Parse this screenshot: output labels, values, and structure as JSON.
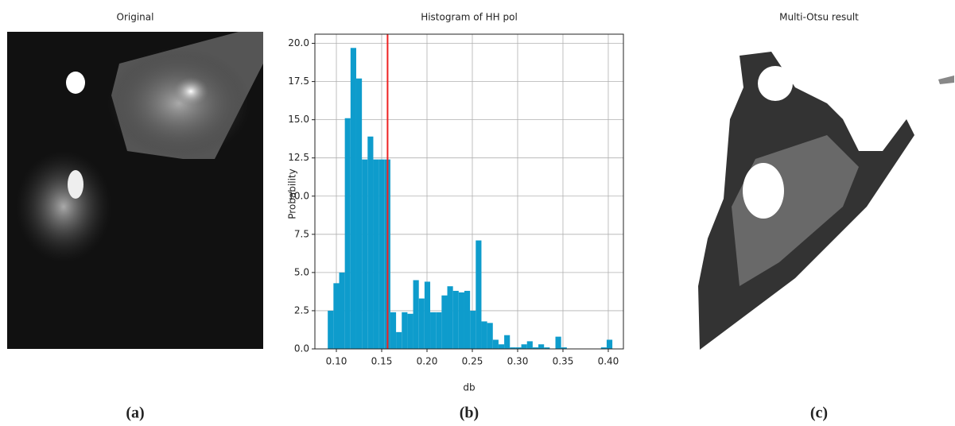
{
  "panels": [
    {
      "title": "Original",
      "caption": "(a)"
    },
    {
      "caption": "(b)"
    },
    {
      "title": "Multi-Otsu result",
      "caption": "(c)"
    }
  ],
  "chart_data": {
    "type": "histogram",
    "title": "Histogram of HH pol",
    "x_label": "db",
    "y_label": "Probability",
    "bins": [
      0.0905,
      0.09678,
      0.10306,
      0.10934,
      0.11562,
      0.1219,
      0.12818,
      0.13446,
      0.14074,
      0.14702,
      0.1533,
      0.15958,
      0.16586,
      0.17214,
      0.17842,
      0.1847,
      0.19098,
      0.19726,
      0.20354,
      0.20982,
      0.2161,
      0.22238,
      0.22866,
      0.23494,
      0.24122,
      0.2475,
      0.25378,
      0.26006,
      0.26634,
      0.27262,
      0.2789,
      0.28518,
      0.29146,
      0.29774,
      0.30402,
      0.3103,
      0.31658,
      0.32286,
      0.32914,
      0.33542,
      0.3417,
      0.34798,
      0.35426,
      0.36054,
      0.36682,
      0.3731,
      0.37938,
      0.38566,
      0.39194,
      0.39822,
      0.4045
    ],
    "values": [
      2.5,
      4.3,
      5.0,
      15.1,
      19.7,
      17.7,
      12.4,
      13.9,
      12.4,
      12.4,
      12.4,
      2.4,
      1.1,
      2.4,
      2.3,
      4.5,
      3.3,
      4.4,
      2.4,
      2.4,
      3.5,
      4.1,
      3.8,
      3.7,
      3.8,
      2.5,
      7.1,
      1.8,
      1.7,
      0.6,
      0.3,
      0.9,
      0.1,
      0.1,
      0.3,
      0.5,
      0.1,
      0.3,
      0.1,
      0,
      0.8,
      0.1,
      0,
      0,
      0,
      0,
      0,
      0,
      0.1,
      0.6
    ],
    "color": "#0e9ccc",
    "threshold": 0.1565,
    "threshold_color": "#ee2222",
    "xlim": [
      0.0763,
      0.4167
    ],
    "xticks": [
      {
        "value": 0.1,
        "label": "0.10"
      },
      0.15,
      {
        "value": 0.2,
        "label": "0.20"
      },
      0.25,
      {
        "value": 0.3,
        "label": "0.30"
      },
      0.35,
      {
        "value": 0.4,
        "label": "0.40"
      }
    ],
    "ylim": [
      0,
      20.6
    ],
    "yticks": [
      {
        "value": 0,
        "label": "0.0"
      },
      2.5,
      {
        "value": 5,
        "label": "5.0"
      },
      7.5,
      {
        "value": 10,
        "label": "10.0"
      },
      12.5,
      {
        "value": 15,
        "label": "15.0"
      },
      17.5,
      {
        "value": 20,
        "label": "20.0"
      }
    ],
    "grid": true
  }
}
